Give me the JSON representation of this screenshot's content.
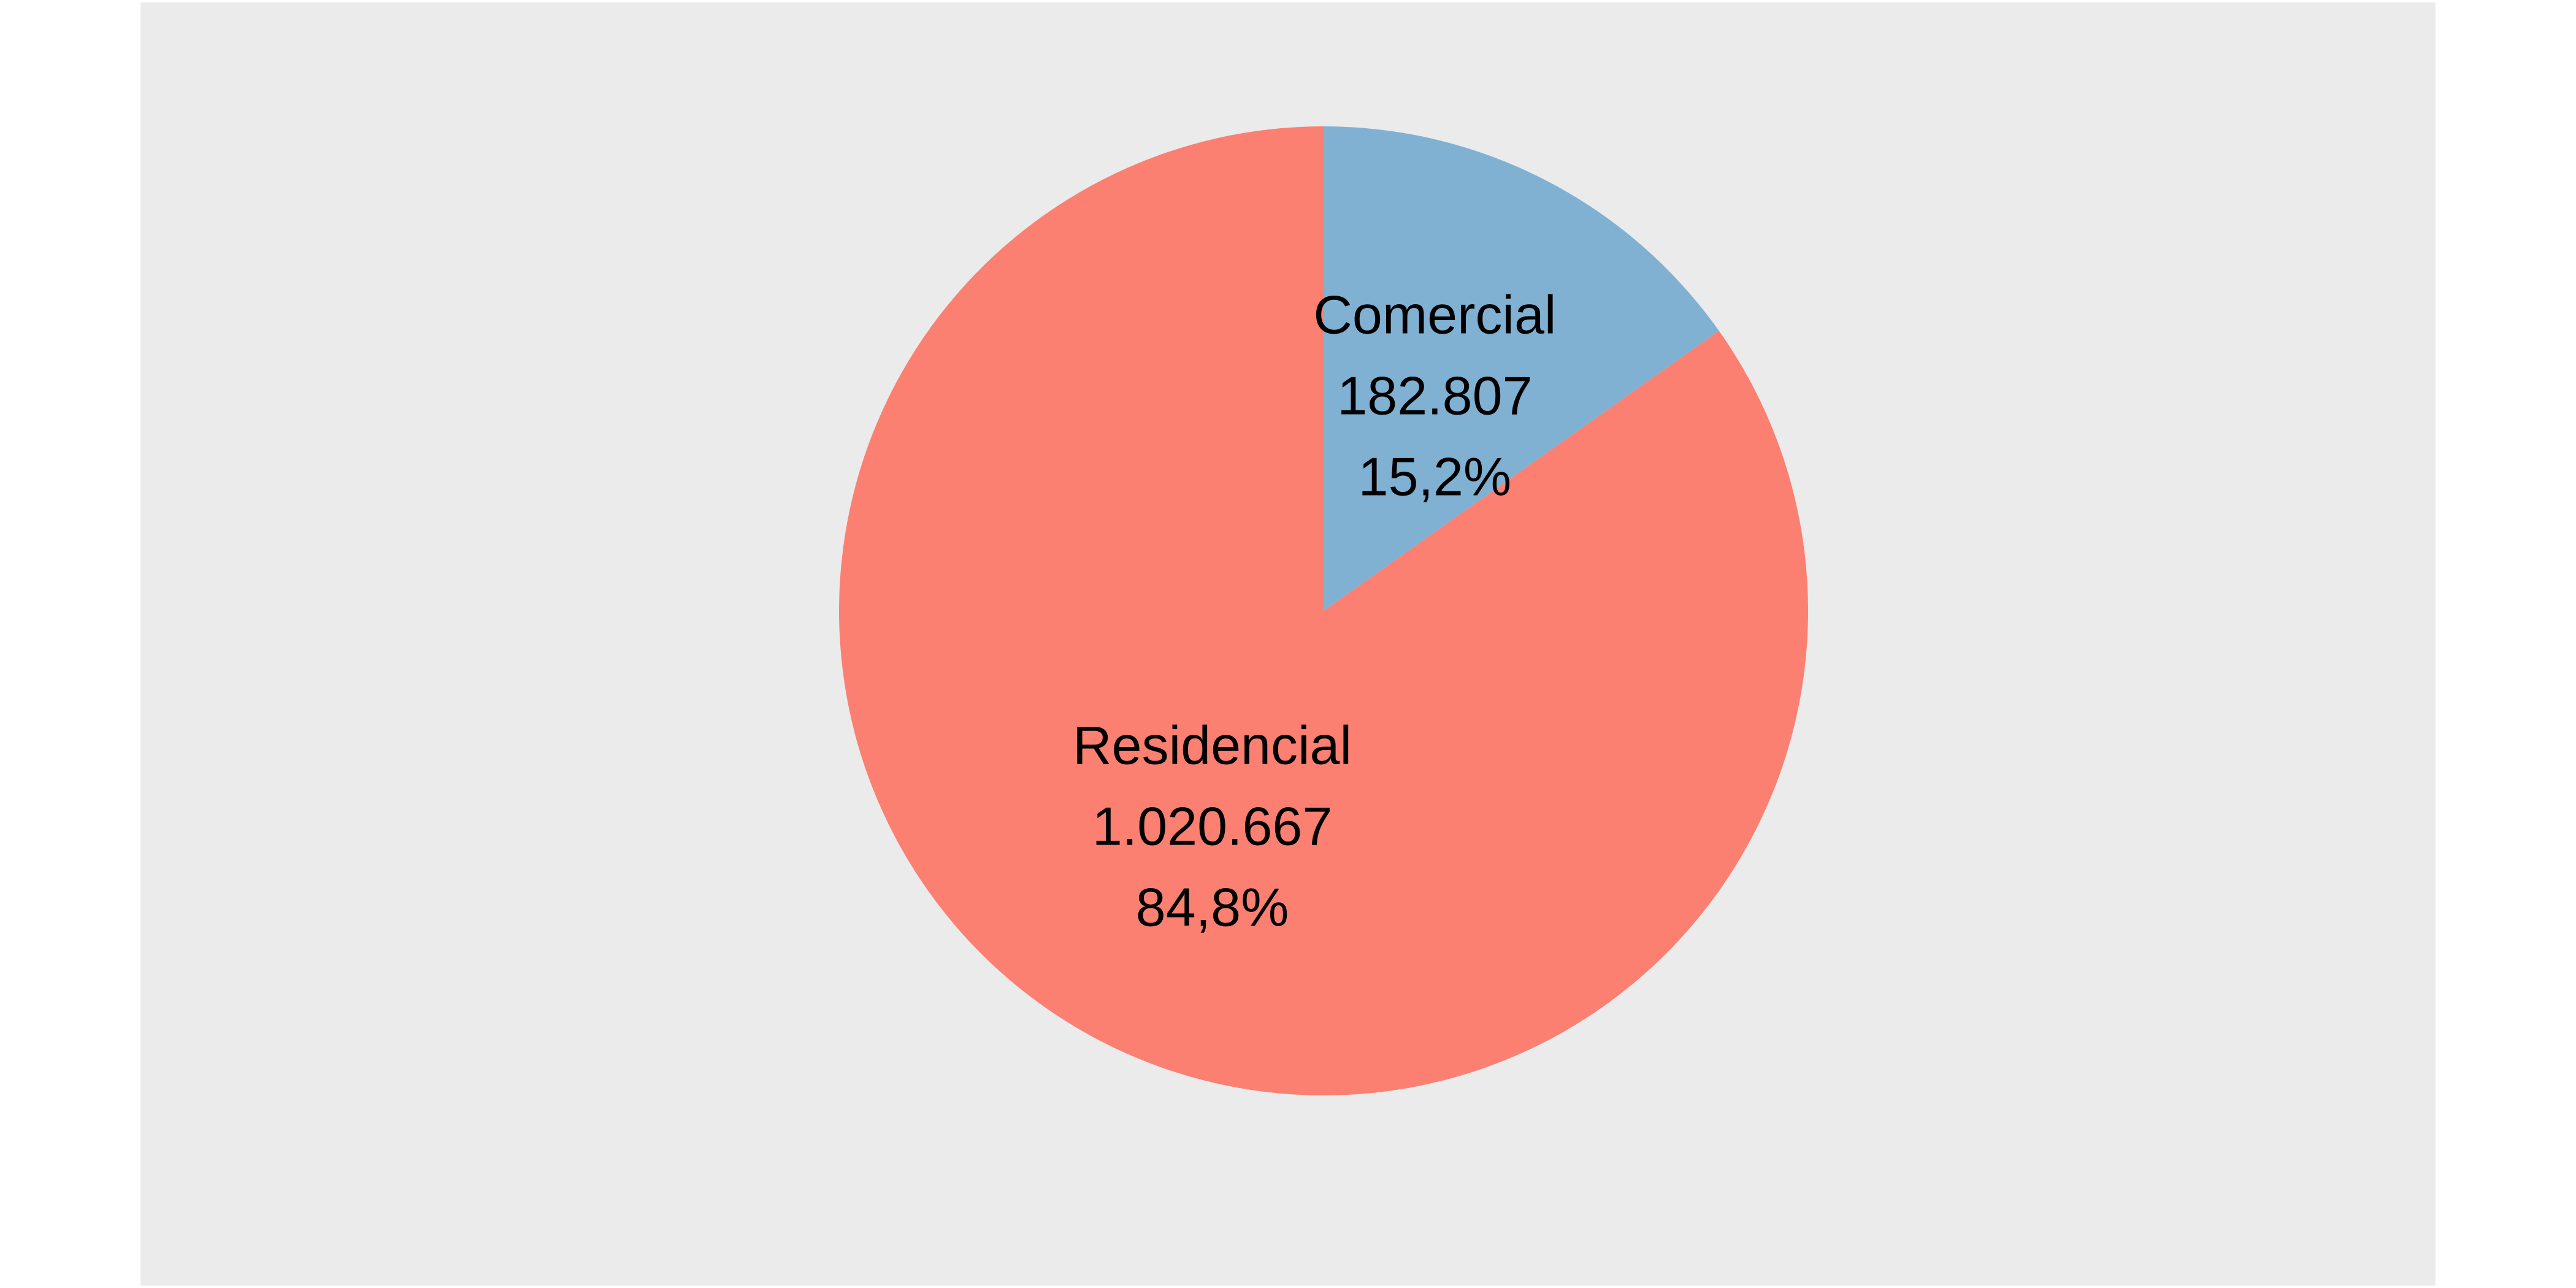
{
  "chart_data": {
    "type": "pie",
    "title": "",
    "start_angle_deg": 0,
    "direction": "clockwise",
    "legend": "none",
    "slices": [
      {
        "name": "Comercial",
        "value": 182807,
        "value_label": "182.807",
        "percent": 15.2,
        "percent_label": "15,2%",
        "color": "#80b1d3"
      },
      {
        "name": "Residencial",
        "value": 1020667,
        "value_label": "1.020.667",
        "percent": 84.8,
        "percent_label": "84,8%",
        "color": "#fb8072"
      }
    ]
  },
  "colors": {
    "panel_background": "#ebebeb",
    "page_background": "#ffffff",
    "label_text": "#000000"
  }
}
